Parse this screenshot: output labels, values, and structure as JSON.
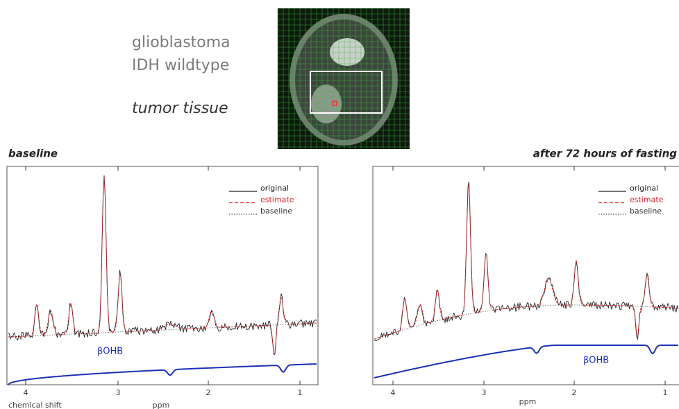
{
  "header": {
    "lines": [
      "glioblastoma",
      "IDH wildtype"
    ],
    "region": "tumor tissue"
  },
  "panels": [
    {
      "title": "baseline",
      "legend": [
        "original",
        "estimate",
        "baseline"
      ],
      "metabolite": "βOHB",
      "axis_ticks": [
        4,
        3,
        2,
        1
      ],
      "axis_label": "ppm",
      "x_caption": "chemical shift"
    },
    {
      "title": "after 72 hours of fasting",
      "legend": [
        "original",
        "estimate",
        "baseline"
      ],
      "metabolite": "βOHB",
      "axis_ticks": [
        4,
        3,
        2,
        1
      ],
      "axis_label": "ppm"
    }
  ]
}
